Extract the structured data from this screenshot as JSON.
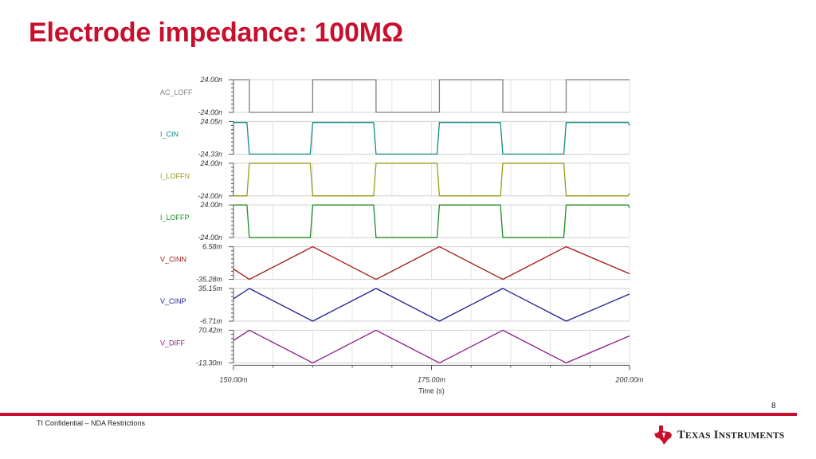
{
  "slide": {
    "title": "Electrode impedance: 100MΩ",
    "page_number": "8",
    "footer_text": "TI Confidential – NDA Restrictions",
    "logo_text": "Texas Instruments",
    "brand_color": "#c8102e"
  },
  "chart_data": {
    "type": "line",
    "xlabel": "Time (s)",
    "xlim": [
      150,
      200
    ],
    "xunit": "ms",
    "x_tick_labels": [
      "150.00m",
      "175.00m",
      "200.00m"
    ],
    "x_tick_values": [
      150,
      175,
      200
    ],
    "x_minor_ticks": [
      155,
      160,
      165,
      170,
      180,
      185,
      190,
      195
    ],
    "grid": true,
    "series": [
      {
        "name": "AC_LOFF",
        "color": "#7f7f7f",
        "ymin_label": "-24.00n",
        "ymax_label": "24.00n",
        "ylim": [
          -24,
          24
        ],
        "yunit": "n",
        "x": [
          150,
          152.0,
          152.0,
          160.0,
          160.0,
          168.0,
          168.0,
          176.0,
          176.0,
          184.0,
          184.0,
          192.0,
          192.0,
          200
        ],
        "y": [
          24,
          24,
          -24,
          -24,
          24,
          24,
          -24,
          -24,
          24,
          24,
          -24,
          -24,
          24,
          24
        ]
      },
      {
        "name": "I_CIN",
        "color": "#138a8a",
        "ymin_label": "-24.33n",
        "ymax_label": "24.05n",
        "ylim": [
          -24.33,
          24.05
        ],
        "yunit": "n",
        "x": [
          150,
          151.7,
          152.0,
          159.7,
          160.0,
          167.7,
          168.0,
          175.7,
          176.0,
          183.7,
          184.0,
          191.7,
          192.0,
          199.8,
          200
        ],
        "y": [
          22.5,
          22.5,
          -24.33,
          -24.33,
          22.5,
          22.5,
          -24.33,
          -24.33,
          22.5,
          22.5,
          -24.33,
          -24.33,
          22.5,
          22.5,
          18
        ]
      },
      {
        "name": "I_LOFFN",
        "color": "#9a9a1a",
        "ymin_label": "-24.00n",
        "ymax_label": "24.00n",
        "ylim": [
          -24,
          24
        ],
        "yunit": "n",
        "x": [
          150,
          151.7,
          152.0,
          159.7,
          160.0,
          167.7,
          168.0,
          175.7,
          176.0,
          183.7,
          184.0,
          191.7,
          192.0,
          199.8,
          200
        ],
        "y": [
          -24,
          -24,
          24,
          24,
          -24,
          -24,
          24,
          24,
          -24,
          -24,
          24,
          24,
          -24,
          -24,
          -20
        ]
      },
      {
        "name": "I_LOFFP",
        "color": "#1e8c1e",
        "ymin_label": "-24.00n",
        "ymax_label": "24.00n",
        "ylim": [
          -24,
          24
        ],
        "yunit": "n",
        "x": [
          150,
          151.7,
          152.0,
          159.7,
          160.0,
          167.7,
          168.0,
          175.7,
          176.0,
          183.7,
          184.0,
          191.7,
          192.0,
          199.8,
          200
        ],
        "y": [
          24,
          24,
          -24,
          -24,
          24,
          24,
          -24,
          -24,
          24,
          24,
          -24,
          -24,
          24,
          24,
          20
        ]
      },
      {
        "name": "V_CINN",
        "color": "#a31515",
        "ymin_label": "-35.28m",
        "ymax_label": "6.58m",
        "ylim": [
          -35.28,
          6.58
        ],
        "yunit": "m",
        "x": [
          150,
          152.0,
          160.0,
          168.0,
          176.0,
          184.0,
          192.0,
          200
        ],
        "y": [
          -22,
          -35.28,
          6.58,
          -35.28,
          6.58,
          -35.28,
          6.58,
          -28
        ]
      },
      {
        "name": "V_CINP",
        "color": "#1f1f8f",
        "ymin_label": "-6.71m",
        "ymax_label": "35.15m",
        "ylim": [
          -6.71,
          35.15
        ],
        "yunit": "m",
        "x": [
          150,
          152.0,
          160.0,
          168.0,
          176.0,
          184.0,
          192.0,
          200
        ],
        "y": [
          22,
          35.15,
          -6.71,
          35.15,
          -6.71,
          35.15,
          -6.71,
          28
        ]
      },
      {
        "name": "V_DIFF",
        "color": "#8b1a8b",
        "ymin_label": "-13.30m",
        "ymax_label": "70.42m",
        "ylim": [
          -13.3,
          70.42
        ],
        "yunit": "m",
        "x": [
          150,
          152.0,
          160.0,
          168.0,
          176.0,
          184.0,
          192.0,
          200
        ],
        "y": [
          44,
          70.42,
          -13.3,
          70.42,
          -13.3,
          70.42,
          -13.3,
          56
        ]
      }
    ]
  }
}
